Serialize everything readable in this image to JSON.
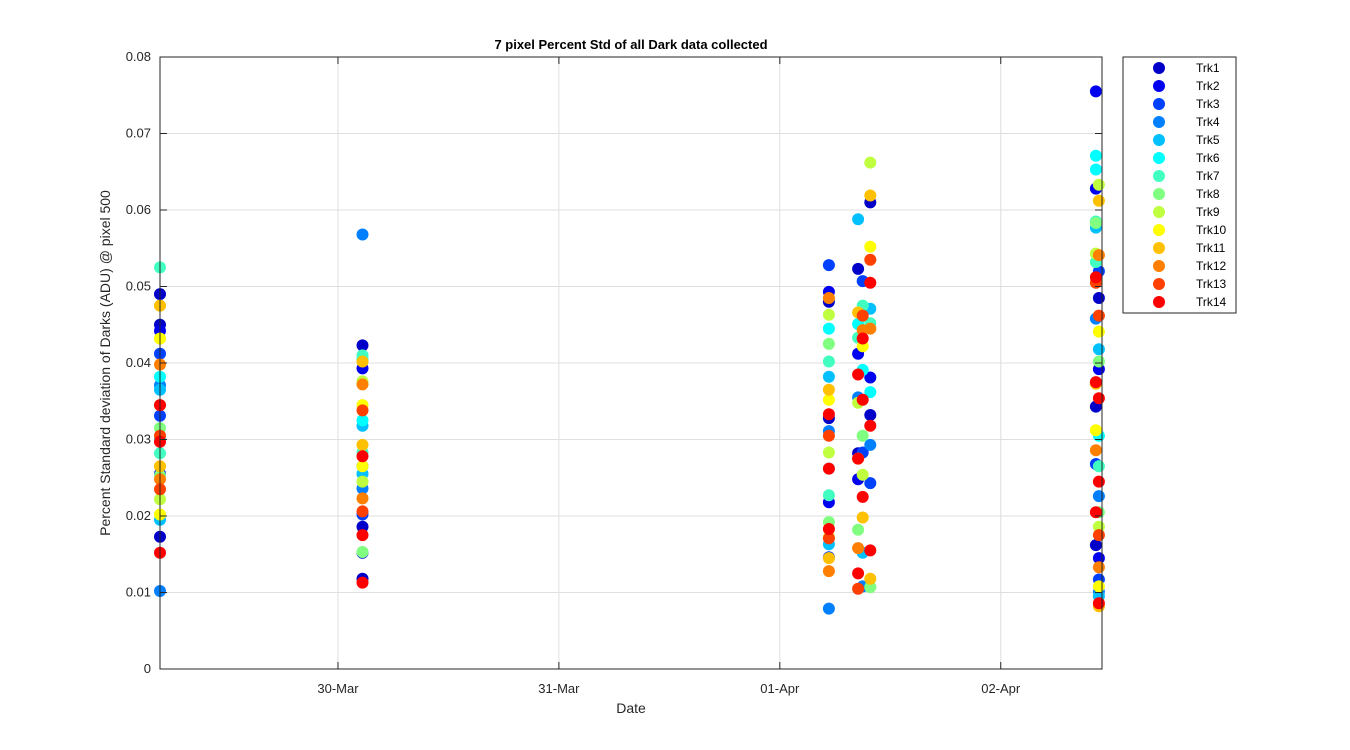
{
  "chart_data": {
    "type": "scatter",
    "title": "7 pixel Percent Std of all Dark data collected",
    "xlabel": "Date",
    "ylabel": "Percent Standard deviation of Darks (ADU) @ pixel 500",
    "x_axis": {
      "type": "date",
      "min": "2016-03-29T04:40",
      "max": "2016-04-02T11:00",
      "ticks": [
        {
          "value": "2016-03-30T00:00",
          "label": "30-Mar"
        },
        {
          "value": "2016-03-31T00:00",
          "label": "31-Mar"
        },
        {
          "value": "2016-04-01T00:00",
          "label": "01-Apr"
        },
        {
          "value": "2016-04-02T00:00",
          "label": "02-Apr"
        }
      ]
    },
    "ylim": [
      0,
      0.08
    ],
    "yticks": [
      0,
      0.01,
      0.02,
      0.03,
      0.04,
      0.05,
      0.06,
      0.07,
      0.08
    ],
    "ytick_labels": [
      "0",
      "0.01",
      "0.02",
      "0.03",
      "0.04",
      "0.05",
      "0.06",
      "0.07",
      "0.08"
    ],
    "grid": true,
    "legend_position": "outside top-right",
    "series": [
      {
        "name": "Trk1",
        "color": "#0000c8",
        "points": [
          [
            "2016-03-29T04:40",
            0.045
          ],
          [
            "2016-03-29T04:40",
            0.049
          ],
          [
            "2016-03-29T04:40",
            0.0173
          ],
          [
            "2016-03-30T02:40",
            0.0423
          ],
          [
            "2016-03-30T02:40",
            0.0118
          ],
          [
            "2016-03-30T02:40",
            0.0186
          ],
          [
            "2016-04-01T05:20",
            0.0328
          ],
          [
            "2016-04-01T05:20",
            0.048
          ],
          [
            "2016-04-01T08:30",
            0.0523
          ],
          [
            "2016-04-01T08:30",
            0.0282
          ],
          [
            "2016-04-01T09:50",
            0.061
          ],
          [
            "2016-04-01T09:50",
            0.0332
          ],
          [
            "2016-04-02T10:40",
            0.0485
          ],
          [
            "2016-04-02T10:20",
            0.0162
          ],
          [
            "2016-04-02T10:20",
            0.0343
          ]
        ]
      },
      {
        "name": "Trk2",
        "color": "#0000f0",
        "points": [
          [
            "2016-03-29T04:40",
            0.0442
          ],
          [
            "2016-03-29T04:40",
            0.0255
          ],
          [
            "2016-03-30T02:40",
            0.0152
          ],
          [
            "2016-03-30T02:40",
            0.0393
          ],
          [
            "2016-04-01T05:20",
            0.0493
          ],
          [
            "2016-04-01T05:20",
            0.0218
          ],
          [
            "2016-04-01T08:30",
            0.0412
          ],
          [
            "2016-04-01T08:30",
            0.0248
          ],
          [
            "2016-04-01T09:50",
            0.0381
          ],
          [
            "2016-04-02T10:20",
            0.0755
          ],
          [
            "2016-04-02T10:20",
            0.0628
          ],
          [
            "2016-04-02T10:40",
            0.0145
          ],
          [
            "2016-04-02T10:40",
            0.0392
          ]
        ]
      },
      {
        "name": "Trk3",
        "color": "#0040ff",
        "points": [
          [
            "2016-03-29T04:40",
            0.0412
          ],
          [
            "2016-03-29T04:40",
            0.0331
          ],
          [
            "2016-03-30T02:40",
            0.0202
          ],
          [
            "2016-03-30T02:40",
            0.0265
          ],
          [
            "2016-04-01T05:20",
            0.0528
          ],
          [
            "2016-04-01T05:20",
            0.0146
          ],
          [
            "2016-04-01T09:00",
            0.0507
          ],
          [
            "2016-04-01T09:00",
            0.0283
          ],
          [
            "2016-04-01T09:50",
            0.0243
          ],
          [
            "2016-04-02T10:40",
            0.052
          ],
          [
            "2016-04-02T10:40",
            0.0117
          ],
          [
            "2016-04-02T10:20",
            0.0268
          ]
        ]
      },
      {
        "name": "Trk4",
        "color": "#0080ff",
        "points": [
          [
            "2016-03-29T04:40",
            0.0102
          ],
          [
            "2016-03-29T04:40",
            0.0371
          ],
          [
            "2016-03-30T02:40",
            0.0568
          ],
          [
            "2016-03-30T02:40",
            0.0236
          ],
          [
            "2016-04-01T05:20",
            0.0079
          ],
          [
            "2016-04-01T05:20",
            0.0311
          ],
          [
            "2016-04-01T08:30",
            0.0355
          ],
          [
            "2016-04-01T09:00",
            0.0108
          ],
          [
            "2016-04-01T09:50",
            0.0293
          ],
          [
            "2016-04-02T10:40",
            0.0101
          ],
          [
            "2016-04-02T10:20",
            0.0458
          ],
          [
            "2016-04-02T10:40",
            0.0226
          ]
        ]
      },
      {
        "name": "Trk5",
        "color": "#00c0ff",
        "points": [
          [
            "2016-03-29T04:40",
            0.0195
          ],
          [
            "2016-03-29T04:40",
            0.0365
          ],
          [
            "2016-03-30T02:40",
            0.0318
          ],
          [
            "2016-03-30T02:40",
            0.0255
          ],
          [
            "2016-04-01T05:20",
            0.0382
          ],
          [
            "2016-04-01T05:20",
            0.0163
          ],
          [
            "2016-04-01T08:30",
            0.0588
          ],
          [
            "2016-04-01T09:00",
            0.0152
          ],
          [
            "2016-04-01T09:50",
            0.0471
          ],
          [
            "2016-04-02T10:20",
            0.0577
          ],
          [
            "2016-04-02T10:40",
            0.0095
          ],
          [
            "2016-04-02T10:40",
            0.0418
          ]
        ]
      },
      {
        "name": "Trk6",
        "color": "#00ffff",
        "points": [
          [
            "2016-03-29T04:40",
            0.0382
          ],
          [
            "2016-03-29T04:40",
            0.0301
          ],
          [
            "2016-03-30T02:40",
            0.0405
          ],
          [
            "2016-03-30T02:40",
            0.0325
          ],
          [
            "2016-04-01T05:20",
            0.0445
          ],
          [
            "2016-04-01T05:20",
            0.0262
          ],
          [
            "2016-04-01T08:30",
            0.0451
          ],
          [
            "2016-04-01T09:00",
            0.0391
          ],
          [
            "2016-04-01T09:50",
            0.0362
          ],
          [
            "2016-04-02T10:20",
            0.0671
          ],
          [
            "2016-04-02T10:20",
            0.0653
          ],
          [
            "2016-04-02T10:40",
            0.0305
          ]
        ]
      },
      {
        "name": "Trk7",
        "color": "#40ffc0",
        "points": [
          [
            "2016-03-29T04:40",
            0.0525
          ],
          [
            "2016-03-29T04:40",
            0.0282
          ],
          [
            "2016-03-30T02:40",
            0.041
          ],
          [
            "2016-03-30T02:40",
            0.0283
          ],
          [
            "2016-04-01T05:20",
            0.0402
          ],
          [
            "2016-04-01T05:20",
            0.0227
          ],
          [
            "2016-04-01T08:30",
            0.0433
          ],
          [
            "2016-04-01T09:00",
            0.0475
          ],
          [
            "2016-04-01T09:50",
            0.0452
          ],
          [
            "2016-04-02T10:20",
            0.0585
          ],
          [
            "2016-04-02T10:20",
            0.0532
          ],
          [
            "2016-04-02T10:40",
            0.0265
          ]
        ]
      },
      {
        "name": "Trk8",
        "color": "#80ff80",
        "points": [
          [
            "2016-03-29T04:40",
            0.0315
          ],
          [
            "2016-03-29T04:40",
            0.0253
          ],
          [
            "2016-03-30T02:40",
            0.0153
          ],
          [
            "2016-03-30T02:40",
            0.0373
          ],
          [
            "2016-04-01T05:20",
            0.0425
          ],
          [
            "2016-04-01T05:20",
            0.0192
          ],
          [
            "2016-04-01T08:30",
            0.0182
          ],
          [
            "2016-04-01T09:00",
            0.0305
          ],
          [
            "2016-04-01T09:50",
            0.0107
          ],
          [
            "2016-04-02T10:20",
            0.0583
          ],
          [
            "2016-04-02T10:40",
            0.0205
          ],
          [
            "2016-04-02T10:40",
            0.0402
          ]
        ]
      },
      {
        "name": "Trk9",
        "color": "#c0ff40",
        "points": [
          [
            "2016-03-29T04:40",
            0.0222
          ],
          [
            "2016-03-29T04:40",
            0.0345
          ],
          [
            "2016-03-30T02:40",
            0.0245
          ],
          [
            "2016-03-30T02:40",
            0.0376
          ],
          [
            "2016-04-01T05:20",
            0.0463
          ],
          [
            "2016-04-01T05:20",
            0.0283
          ],
          [
            "2016-04-01T08:30",
            0.0348
          ],
          [
            "2016-04-01T09:00",
            0.0254
          ],
          [
            "2016-04-01T09:50",
            0.0662
          ],
          [
            "2016-04-02T10:40",
            0.0633
          ],
          [
            "2016-04-02T10:20",
            0.0543
          ],
          [
            "2016-04-02T10:40",
            0.0186
          ]
        ]
      },
      {
        "name": "Trk10",
        "color": "#ffff00",
        "points": [
          [
            "2016-03-29T04:40",
            0.0432
          ],
          [
            "2016-03-29T04:40",
            0.0202
          ],
          [
            "2016-03-30T02:40",
            0.0345
          ],
          [
            "2016-03-30T02:40",
            0.0265
          ],
          [
            "2016-04-01T05:20",
            0.0172
          ],
          [
            "2016-04-01T05:20",
            0.0352
          ],
          [
            "2016-04-01T08:30",
            0.0275
          ],
          [
            "2016-04-01T09:00",
            0.0422
          ],
          [
            "2016-04-01T09:50",
            0.0552
          ],
          [
            "2016-04-02T10:40",
            0.0108
          ],
          [
            "2016-04-02T10:40",
            0.0441
          ],
          [
            "2016-04-02T10:20",
            0.0312
          ]
        ]
      },
      {
        "name": "Trk11",
        "color": "#ffc000",
        "points": [
          [
            "2016-03-29T04:40",
            0.0475
          ],
          [
            "2016-03-29T04:40",
            0.0265
          ],
          [
            "2016-03-30T02:40",
            0.0402
          ],
          [
            "2016-03-30T02:40",
            0.0293
          ],
          [
            "2016-04-01T05:20",
            0.0365
          ],
          [
            "2016-04-01T05:20",
            0.0145
          ],
          [
            "2016-04-01T08:30",
            0.0466
          ],
          [
            "2016-04-01T09:00",
            0.0198
          ],
          [
            "2016-04-01T09:50",
            0.0619
          ],
          [
            "2016-04-01T09:50",
            0.0118
          ],
          [
            "2016-04-02T10:40",
            0.0612
          ],
          [
            "2016-04-02T10:40",
            0.0082
          ],
          [
            "2016-04-02T10:20",
            0.0373
          ]
        ]
      },
      {
        "name": "Trk12",
        "color": "#ff8000",
        "points": [
          [
            "2016-03-29T04:40",
            0.0398
          ],
          [
            "2016-03-29T04:40",
            0.0248
          ],
          [
            "2016-03-30T02:40",
            0.0372
          ],
          [
            "2016-03-30T02:40",
            0.0223
          ],
          [
            "2016-04-01T05:20",
            0.0485
          ],
          [
            "2016-04-01T05:20",
            0.0128
          ],
          [
            "2016-04-01T08:30",
            0.0158
          ],
          [
            "2016-04-01T09:00",
            0.0443
          ],
          [
            "2016-04-01T09:50",
            0.0445
          ],
          [
            "2016-04-02T10:40",
            0.0541
          ],
          [
            "2016-04-02T10:40",
            0.0133
          ],
          [
            "2016-04-02T10:20",
            0.0286
          ]
        ]
      },
      {
        "name": "Trk13",
        "color": "#ff4000",
        "points": [
          [
            "2016-03-29T04:40",
            0.0305
          ],
          [
            "2016-03-29T04:40",
            0.0235
          ],
          [
            "2016-03-30T02:40",
            0.0338
          ],
          [
            "2016-03-30T02:40",
            0.0206
          ],
          [
            "2016-04-01T05:20",
            0.0305
          ],
          [
            "2016-04-01T05:20",
            0.0171
          ],
          [
            "2016-04-01T08:30",
            0.0105
          ],
          [
            "2016-04-01T09:00",
            0.0462
          ],
          [
            "2016-04-01T09:50",
            0.0535
          ],
          [
            "2016-04-02T10:20",
            0.0505
          ],
          [
            "2016-04-02T10:40",
            0.0462
          ],
          [
            "2016-04-02T10:40",
            0.0175
          ]
        ]
      },
      {
        "name": "Trk14",
        "color": "#ff0000",
        "points": [
          [
            "2016-03-29T04:40",
            0.0152
          ],
          [
            "2016-03-29T04:40",
            0.0345
          ],
          [
            "2016-03-29T04:40",
            0.0297
          ],
          [
            "2016-03-30T02:40",
            0.0113
          ],
          [
            "2016-03-30T02:40",
            0.0175
          ],
          [
            "2016-03-30T02:40",
            0.0278
          ],
          [
            "2016-04-01T05:20",
            0.0333
          ],
          [
            "2016-04-01T05:20",
            0.0183
          ],
          [
            "2016-04-01T05:20",
            0.0262
          ],
          [
            "2016-04-01T08:30",
            0.0385
          ],
          [
            "2016-04-01T08:30",
            0.0125
          ],
          [
            "2016-04-01T08:30",
            0.0275
          ],
          [
            "2016-04-01T09:00",
            0.0432
          ],
          [
            "2016-04-01T09:00",
            0.0225
          ],
          [
            "2016-04-01T09:00",
            0.0352
          ],
          [
            "2016-04-01T09:50",
            0.0505
          ],
          [
            "2016-04-01T09:50",
            0.0155
          ],
          [
            "2016-04-01T09:50",
            0.0318
          ],
          [
            "2016-04-02T10:20",
            0.0512
          ],
          [
            "2016-04-02T10:20",
            0.0375
          ],
          [
            "2016-04-02T10:40",
            0.0086
          ],
          [
            "2016-04-02T10:40",
            0.0245
          ],
          [
            "2016-04-02T10:40",
            0.0354
          ],
          [
            "2016-04-02T10:20",
            0.0205
          ]
        ]
      }
    ]
  }
}
